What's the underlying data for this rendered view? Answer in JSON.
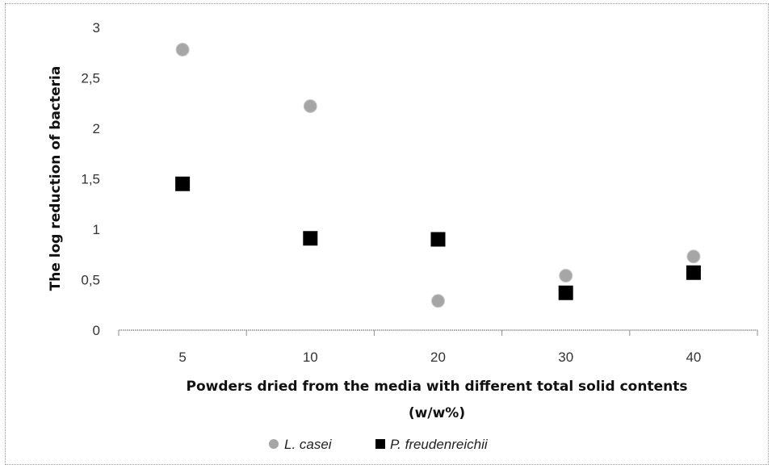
{
  "chart_data": {
    "type": "scatter",
    "categories": [
      "5",
      "10",
      "20",
      "30",
      "40"
    ],
    "ylabel": "The log reduction of bacteria",
    "xlabel_lines": [
      "Powders dried from the media with different total solid contents",
      "(w/w%)"
    ],
    "ylim": [
      0,
      3
    ],
    "yticks": [
      "0",
      "0,5",
      "1",
      "1,5",
      "2",
      "2,5",
      "3"
    ],
    "grid": false,
    "legend_position": "bottom",
    "series": [
      {
        "name": "L. casei",
        "marker": "circle",
        "color": "#a6a6a6",
        "values": [
          2.78,
          2.22,
          0.29,
          0.54,
          0.73
        ]
      },
      {
        "name": "P. freudenreichii",
        "marker": "square",
        "color": "#000000",
        "values": [
          1.45,
          0.91,
          0.9,
          0.37,
          0.57
        ]
      }
    ]
  }
}
